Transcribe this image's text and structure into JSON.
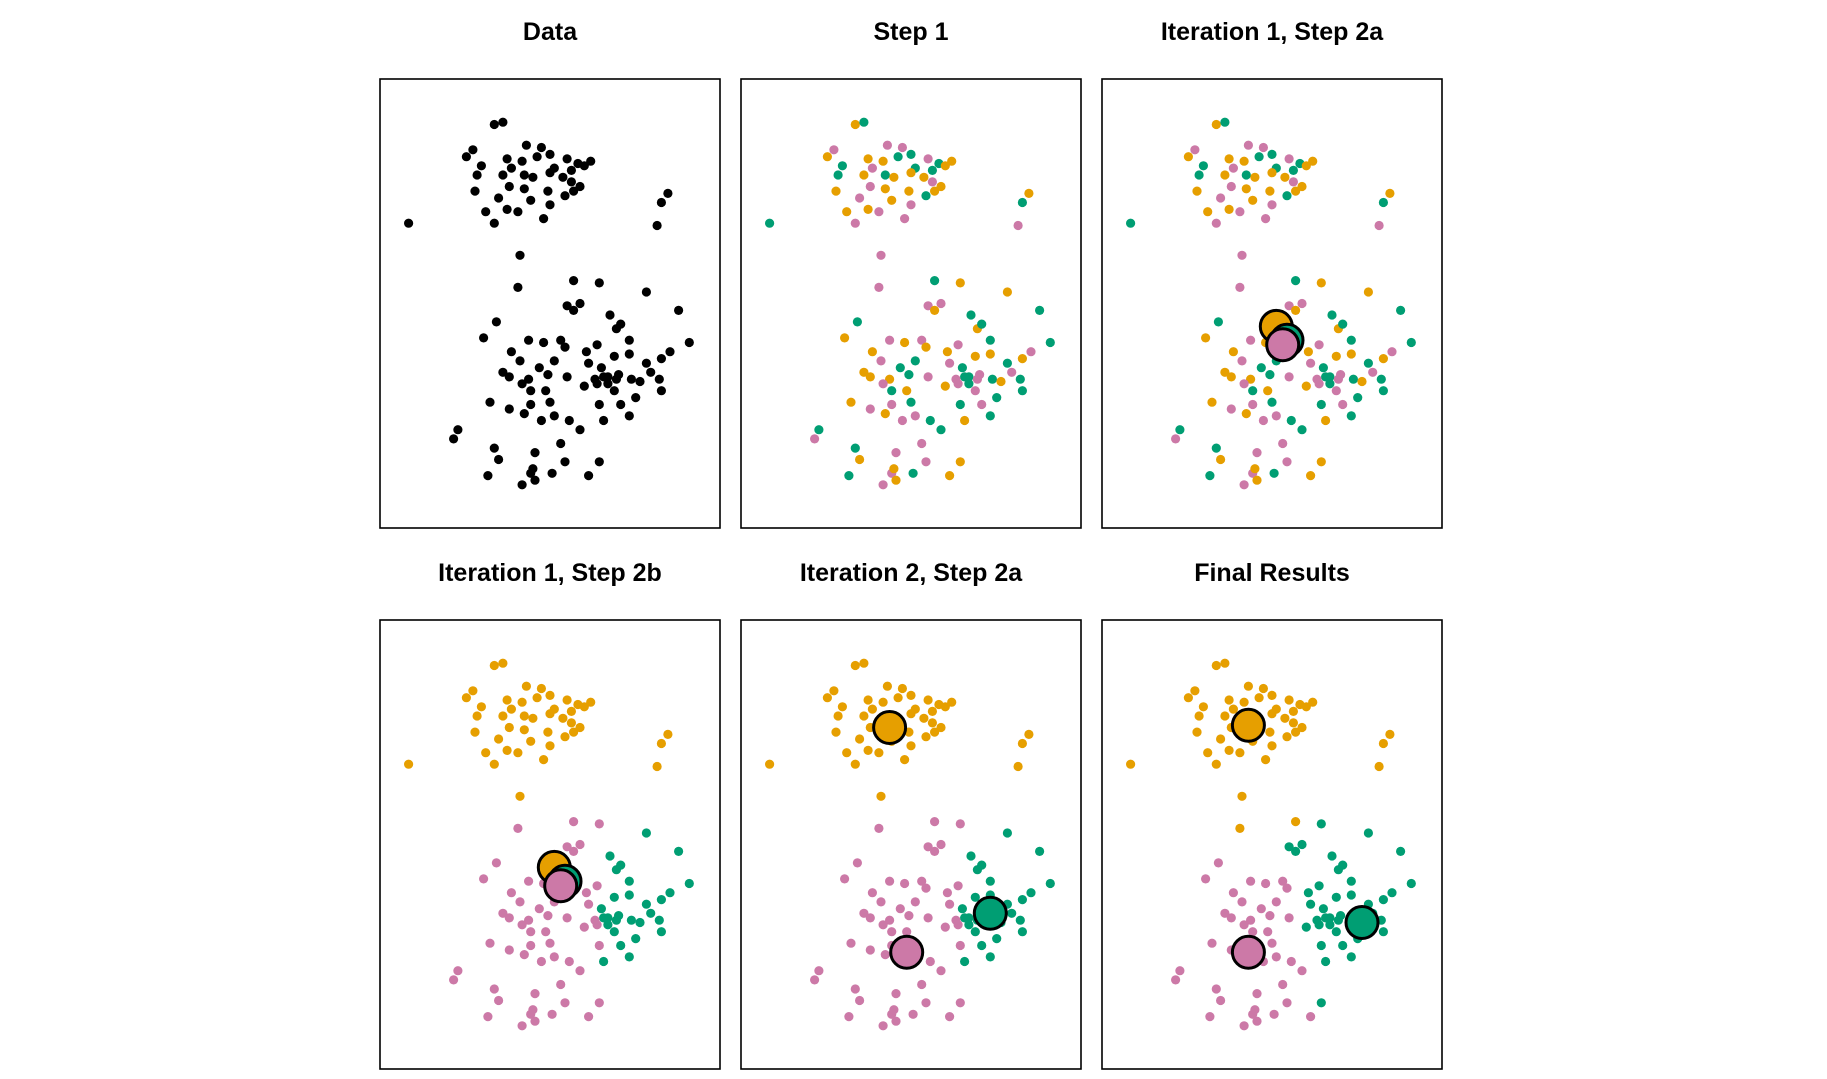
{
  "figure": {
    "description_colors": {
      "cluster_1": "#E69F00",
      "cluster_2": "#CC79A7",
      "cluster_3": "#009E73",
      "unassigned": "#000000"
    }
  },
  "chart_data": [
    {
      "type": "scatter",
      "title": "Data",
      "points": [
        [
          5.2,
          9.4,
          0
        ],
        [
          5.4,
          9.45,
          0
        ],
        [
          5.95,
          8.95,
          0
        ],
        [
          6.3,
          8.9,
          0
        ],
        [
          6.5,
          8.75,
          0
        ],
        [
          6.9,
          8.65,
          0
        ],
        [
          7.15,
          8.55,
          0
        ],
        [
          7.45,
          8.6,
          0
        ],
        [
          4.7,
          8.85,
          0
        ],
        [
          4.55,
          8.7,
          0
        ],
        [
          4.9,
          8.5,
          0
        ],
        [
          5.5,
          8.65,
          0
        ],
        [
          5.85,
          8.6,
          0
        ],
        [
          6.2,
          8.7,
          0
        ],
        [
          6.6,
          8.45,
          0
        ],
        [
          7.0,
          8.4,
          0
        ],
        [
          7.3,
          8.5,
          0
        ],
        [
          4.8,
          8.3,
          0
        ],
        [
          5.4,
          8.3,
          0
        ],
        [
          5.6,
          8.45,
          0
        ],
        [
          5.9,
          8.3,
          0
        ],
        [
          6.1,
          8.25,
          0
        ],
        [
          6.5,
          8.35,
          0
        ],
        [
          6.8,
          8.25,
          0
        ],
        [
          7.0,
          8.15,
          0
        ],
        [
          4.75,
          7.95,
          0
        ],
        [
          5.55,
          8.05,
          0
        ],
        [
          5.9,
          8.0,
          0
        ],
        [
          6.45,
          7.95,
          0
        ],
        [
          6.85,
          7.85,
          0
        ],
        [
          7.05,
          7.95,
          0
        ],
        [
          7.2,
          8.05,
          0
        ],
        [
          5.3,
          7.8,
          0
        ],
        [
          6.05,
          7.75,
          0
        ],
        [
          6.5,
          7.65,
          0
        ],
        [
          5.0,
          7.5,
          0
        ],
        [
          5.5,
          7.55,
          0
        ],
        [
          5.75,
          7.5,
          0
        ],
        [
          6.35,
          7.35,
          0
        ],
        [
          5.2,
          7.25,
          0
        ],
        [
          3.2,
          7.25,
          0
        ],
        [
          9.25,
          7.9,
          0
        ],
        [
          9.1,
          7.7,
          0
        ],
        [
          9.0,
          7.2,
          0
        ],
        [
          5.8,
          6.55,
          0
        ],
        [
          5.75,
          5.85,
          0
        ],
        [
          7.05,
          6.0,
          0
        ],
        [
          7.65,
          5.95,
          0
        ],
        [
          6.9,
          5.45,
          0
        ],
        [
          7.2,
          5.5,
          0
        ],
        [
          7.05,
          5.35,
          0
        ],
        [
          8.75,
          5.75,
          0
        ],
        [
          7.9,
          5.25,
          0
        ],
        [
          8.05,
          4.95,
          0
        ],
        [
          8.15,
          5.05,
          0
        ],
        [
          9.5,
          5.35,
          0
        ],
        [
          9.75,
          4.65,
          0
        ],
        [
          9.3,
          4.45,
          0
        ],
        [
          5.25,
          5.1,
          0
        ],
        [
          4.95,
          4.75,
          0
        ],
        [
          5.6,
          4.45,
          0
        ],
        [
          6.0,
          4.7,
          0
        ],
        [
          6.35,
          4.65,
          0
        ],
        [
          6.75,
          4.7,
          0
        ],
        [
          6.85,
          4.55,
          0
        ],
        [
          7.35,
          4.45,
          0
        ],
        [
          7.6,
          4.6,
          0
        ],
        [
          8.35,
          4.7,
          0
        ],
        [
          8.0,
          4.35,
          0
        ],
        [
          7.4,
          4.2,
          0
        ],
        [
          7.7,
          4.1,
          0
        ],
        [
          8.35,
          4.4,
          0
        ],
        [
          8.75,
          4.2,
          0
        ],
        [
          8.85,
          4.0,
          0
        ],
        [
          9.1,
          4.3,
          0
        ],
        [
          5.8,
          4.25,
          0
        ],
        [
          6.25,
          4.1,
          0
        ],
        [
          6.6,
          4.25,
          0
        ],
        [
          6.45,
          3.95,
          0
        ],
        [
          6.0,
          3.85,
          0
        ],
        [
          5.55,
          3.9,
          0
        ],
        [
          5.4,
          4.0,
          0
        ],
        [
          5.85,
          3.75,
          0
        ],
        [
          6.05,
          3.6,
          0
        ],
        [
          6.4,
          3.6,
          0
        ],
        [
          6.9,
          3.9,
          0
        ],
        [
          7.3,
          3.7,
          0
        ],
        [
          7.6,
          3.75,
          0
        ],
        [
          7.85,
          3.9,
          0
        ],
        [
          8.1,
          3.95,
          0
        ],
        [
          8.4,
          3.85,
          0
        ],
        [
          8.6,
          3.8,
          0
        ],
        [
          8.0,
          3.6,
          0
        ],
        [
          8.5,
          3.45,
          0
        ],
        [
          9.1,
          3.6,
          0
        ],
        [
          9.05,
          3.85,
          0
        ],
        [
          7.75,
          3.9,
          0
        ],
        [
          8.05,
          3.85,
          0
        ],
        [
          7.85,
          3.75,
          0
        ],
        [
          7.55,
          3.85,
          0
        ],
        [
          5.1,
          3.35,
          0
        ],
        [
          6.05,
          3.3,
          0
        ],
        [
          5.9,
          3.1,
          0
        ],
        [
          6.5,
          3.35,
          0
        ],
        [
          5.55,
          3.2,
          0
        ],
        [
          6.3,
          2.95,
          0
        ],
        [
          6.6,
          3.05,
          0
        ],
        [
          7.65,
          3.3,
          0
        ],
        [
          7.75,
          2.95,
          0
        ],
        [
          8.15,
          3.3,
          0
        ],
        [
          8.35,
          3.05,
          0
        ],
        [
          7.2,
          2.75,
          0
        ],
        [
          6.95,
          2.95,
          0
        ],
        [
          4.35,
          2.75,
          0
        ],
        [
          4.25,
          2.55,
          0
        ],
        [
          5.2,
          2.35,
          0
        ],
        [
          5.3,
          2.1,
          0
        ],
        [
          6.75,
          2.45,
          0
        ],
        [
          6.85,
          2.05,
          0
        ],
        [
          6.15,
          2.25,
          0
        ],
        [
          5.05,
          1.75,
          0
        ],
        [
          6.05,
          1.8,
          0
        ],
        [
          5.85,
          1.55,
          0
        ],
        [
          6.15,
          1.65,
          0
        ],
        [
          6.1,
          1.9,
          0
        ],
        [
          7.4,
          1.75,
          0
        ],
        [
          7.65,
          2.05,
          0
        ],
        [
          6.55,
          1.8,
          0
        ]
      ],
      "centroids": []
    },
    {
      "type": "scatter",
      "title": "Step 1",
      "points": [
        [
          5.2,
          9.4,
          0
        ],
        [
          5.4,
          9.45,
          2
        ],
        [
          5.95,
          8.95,
          1
        ],
        [
          6.3,
          8.9,
          1
        ],
        [
          6.5,
          8.75,
          2
        ],
        [
          6.9,
          8.65,
          1
        ],
        [
          7.15,
          8.55,
          2
        ],
        [
          7.45,
          8.6,
          0
        ],
        [
          4.7,
          8.85,
          1
        ],
        [
          4.55,
          8.7,
          0
        ],
        [
          4.9,
          8.5,
          2
        ],
        [
          5.5,
          8.65,
          0
        ],
        [
          5.85,
          8.6,
          0
        ],
        [
          6.2,
          8.7,
          2
        ],
        [
          6.6,
          8.45,
          2
        ],
        [
          7.0,
          8.4,
          2
        ],
        [
          7.3,
          8.5,
          0
        ],
        [
          4.8,
          8.3,
          2
        ],
        [
          5.4,
          8.3,
          0
        ],
        [
          5.6,
          8.45,
          1
        ],
        [
          5.9,
          8.3,
          2
        ],
        [
          6.1,
          8.25,
          0
        ],
        [
          6.5,
          8.35,
          0
        ],
        [
          6.8,
          8.25,
          0
        ],
        [
          7.0,
          8.15,
          1
        ],
        [
          4.75,
          7.95,
          0
        ],
        [
          5.55,
          8.05,
          1
        ],
        [
          5.9,
          8.0,
          0
        ],
        [
          6.45,
          7.95,
          0
        ],
        [
          6.85,
          7.85,
          2
        ],
        [
          7.05,
          7.95,
          0
        ],
        [
          7.2,
          8.05,
          0
        ],
        [
          5.3,
          7.8,
          1
        ],
        [
          6.05,
          7.75,
          0
        ],
        [
          6.5,
          7.65,
          1
        ],
        [
          5.0,
          7.5,
          0
        ],
        [
          5.5,
          7.55,
          0
        ],
        [
          5.75,
          7.5,
          1
        ],
        [
          6.35,
          7.35,
          1
        ],
        [
          5.2,
          7.25,
          1
        ],
        [
          3.2,
          7.25,
          2
        ],
        [
          9.25,
          7.9,
          0
        ],
        [
          9.1,
          7.7,
          2
        ],
        [
          9.0,
          7.2,
          1
        ],
        [
          5.8,
          6.55,
          1
        ],
        [
          5.75,
          5.85,
          1
        ],
        [
          7.05,
          6.0,
          2
        ],
        [
          7.65,
          5.95,
          0
        ],
        [
          6.9,
          5.45,
          1
        ],
        [
          7.2,
          5.5,
          1
        ],
        [
          7.05,
          5.35,
          0
        ],
        [
          8.75,
          5.75,
          0
        ],
        [
          7.9,
          5.25,
          2
        ],
        [
          8.05,
          4.95,
          0
        ],
        [
          8.15,
          5.05,
          2
        ],
        [
          9.5,
          5.35,
          2
        ],
        [
          9.75,
          4.65,
          2
        ],
        [
          9.3,
          4.45,
          1
        ],
        [
          5.25,
          5.1,
          2
        ],
        [
          4.95,
          4.75,
          0
        ],
        [
          5.6,
          4.45,
          0
        ],
        [
          6.0,
          4.7,
          1
        ],
        [
          6.35,
          4.65,
          0
        ],
        [
          6.75,
          4.7,
          1
        ],
        [
          6.85,
          4.55,
          0
        ],
        [
          7.35,
          4.45,
          0
        ],
        [
          7.6,
          4.6,
          1
        ],
        [
          8.35,
          4.7,
          2
        ],
        [
          8.0,
          4.35,
          0
        ],
        [
          7.4,
          4.2,
          1
        ],
        [
          7.7,
          4.1,
          2
        ],
        [
          8.35,
          4.4,
          0
        ],
        [
          8.75,
          4.2,
          2
        ],
        [
          8.85,
          4.0,
          1
        ],
        [
          9.1,
          4.3,
          0
        ],
        [
          5.8,
          4.25,
          1
        ],
        [
          6.25,
          4.1,
          2
        ],
        [
          6.6,
          4.25,
          2
        ],
        [
          6.45,
          3.95,
          2
        ],
        [
          6.0,
          3.85,
          0
        ],
        [
          5.55,
          3.9,
          0
        ],
        [
          5.4,
          4.0,
          0
        ],
        [
          5.85,
          3.75,
          1
        ],
        [
          6.05,
          3.6,
          2
        ],
        [
          6.4,
          3.6,
          0
        ],
        [
          6.9,
          3.9,
          1
        ],
        [
          7.3,
          3.7,
          0
        ],
        [
          7.6,
          3.75,
          1
        ],
        [
          7.85,
          3.9,
          2
        ],
        [
          8.1,
          3.95,
          1
        ],
        [
          8.4,
          3.85,
          2
        ],
        [
          8.6,
          3.8,
          0
        ],
        [
          8.0,
          3.6,
          1
        ],
        [
          8.5,
          3.45,
          2
        ],
        [
          9.1,
          3.6,
          2
        ],
        [
          9.05,
          3.85,
          2
        ],
        [
          7.75,
          3.9,
          2
        ],
        [
          8.05,
          3.85,
          1
        ],
        [
          7.85,
          3.75,
          2
        ],
        [
          7.55,
          3.85,
          1
        ],
        [
          5.1,
          3.35,
          0
        ],
        [
          6.05,
          3.3,
          1
        ],
        [
          5.9,
          3.1,
          0
        ],
        [
          6.5,
          3.35,
          2
        ],
        [
          5.55,
          3.2,
          1
        ],
        [
          6.3,
          2.95,
          1
        ],
        [
          6.6,
          3.05,
          1
        ],
        [
          7.65,
          3.3,
          2
        ],
        [
          7.75,
          2.95,
          0
        ],
        [
          8.15,
          3.3,
          1
        ],
        [
          8.35,
          3.05,
          2
        ],
        [
          7.2,
          2.75,
          2
        ],
        [
          6.95,
          2.95,
          2
        ],
        [
          4.35,
          2.75,
          2
        ],
        [
          4.25,
          2.55,
          1
        ],
        [
          5.2,
          2.35,
          2
        ],
        [
          5.3,
          2.1,
          0
        ],
        [
          6.75,
          2.45,
          1
        ],
        [
          6.85,
          2.05,
          1
        ],
        [
          6.15,
          2.25,
          1
        ],
        [
          5.05,
          1.75,
          2
        ],
        [
          6.05,
          1.8,
          1
        ],
        [
          5.85,
          1.55,
          1
        ],
        [
          6.15,
          1.65,
          0
        ],
        [
          6.1,
          1.9,
          0
        ],
        [
          7.4,
          1.75,
          0
        ],
        [
          7.65,
          2.05,
          0
        ],
        [
          6.55,
          1.8,
          2
        ]
      ],
      "centroids": []
    },
    {
      "type": "scatter",
      "title": "Iteration 1, Step 2a",
      "points": "same_as_step_1",
      "centroids": [
        {
          "cluster": 0,
          "x": 6.6,
          "y": 5.0
        },
        {
          "cluster": 2,
          "x": 6.85,
          "y": 4.7
        },
        {
          "cluster": 1,
          "x": 6.75,
          "y": 4.6
        }
      ]
    },
    {
      "type": "scatter",
      "title": "Iteration 1, Step 2b",
      "points": "reassigned_to_nearest_step_2a_centroid",
      "centroids": [
        {
          "cluster": 0,
          "x": 6.6,
          "y": 5.0
        },
        {
          "cluster": 2,
          "x": 6.85,
          "y": 4.7
        },
        {
          "cluster": 1,
          "x": 6.75,
          "y": 4.6
        }
      ]
    },
    {
      "type": "scatter",
      "title": "Iteration 2, Step 2a",
      "points": "same_as_iteration_1_step_2b",
      "centroids": [
        {
          "cluster": 0,
          "x": 6.0,
          "y": 8.05
        },
        {
          "cluster": 2,
          "x": 8.35,
          "y": 4.0
        },
        {
          "cluster": 1,
          "x": 6.4,
          "y": 3.15
        }
      ]
    },
    {
      "type": "scatter",
      "title": "Final Results",
      "points": "assigned_to_nearest_final_centroid",
      "centroids": [
        {
          "cluster": 0,
          "x": 5.95,
          "y": 8.1
        },
        {
          "cluster": 2,
          "x": 8.6,
          "y": 3.8
        },
        {
          "cluster": 1,
          "x": 5.95,
          "y": 3.15
        }
      ]
    }
  ]
}
